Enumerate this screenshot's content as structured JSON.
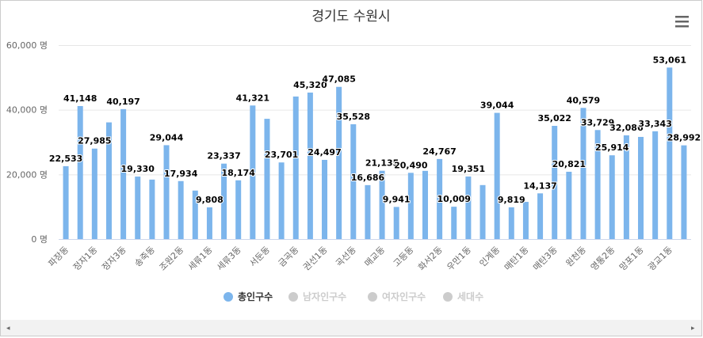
{
  "chart_data": {
    "type": "bar",
    "title": "경기도 수원시",
    "categories": [
      "파장동",
      null,
      "정자1동",
      null,
      "정자3동",
      null,
      "송죽동",
      null,
      "조원2동",
      null,
      "세류1동",
      null,
      "세류3동",
      null,
      "서둔동",
      null,
      "금곡동",
      null,
      "권선1동",
      null,
      "곡선동",
      null,
      "매교동",
      null,
      "고등동",
      null,
      "화서2동",
      null,
      "우만1동",
      null,
      "인계동",
      null,
      "매탄1동",
      null,
      "매탄3동",
      null,
      "원천동",
      null,
      "영통2동",
      null,
      "망포1동",
      null,
      "광교1동",
      null
    ],
    "series": [
      {
        "name": "총인구수",
        "color": "#7cb5ec",
        "values": [
          22533,
          41148,
          27985,
          36100,
          40197,
          19330,
          18400,
          29044,
          17934,
          15000,
          9808,
          23337,
          18174,
          41321,
          37200,
          23701,
          44100,
          45320,
          24497,
          47085,
          35528,
          16686,
          21135,
          9941,
          20490,
          21100,
          24767,
          10009,
          19351,
          16700,
          39044,
          9819,
          11500,
          14137,
          35022,
          20821,
          40579,
          33729,
          25914,
          32086,
          31600,
          33343,
          53061,
          28992
        ],
        "value_labels": [
          "22,533",
          "41,148",
          "27,985",
          null,
          "40,197",
          "19,330",
          null,
          "29,044",
          "17,934",
          null,
          "9,808",
          "23,337",
          "18,174",
          "41,321",
          null,
          "23,701",
          null,
          "45,320",
          "24,497",
          "47,085",
          "35,528",
          "16,686",
          "21,135",
          "9,941",
          "20,490",
          null,
          "24,767",
          "10,009",
          "19,351",
          null,
          "39,044",
          "9,819",
          null,
          "14,137",
          "35,022",
          "20,821",
          "40,579",
          "33,729",
          "25,914",
          "32,086",
          null,
          "33,343",
          "53,061",
          "28,992"
        ]
      },
      {
        "name": "남자인구수",
        "color": "#cccccc"
      },
      {
        "name": "여자인구수",
        "color": "#cccccc"
      },
      {
        "name": "세대수",
        "color": "#cccccc"
      }
    ],
    "ylim": [
      0,
      60000
    ],
    "yticks": [
      {
        "value": 0,
        "label": "0 명"
      },
      {
        "value": 20000,
        "label": "20,000 명"
      },
      {
        "value": 40000,
        "label": "40,000 명"
      },
      {
        "value": 60000,
        "label": "60,000 명"
      }
    ],
    "grid": true
  }
}
